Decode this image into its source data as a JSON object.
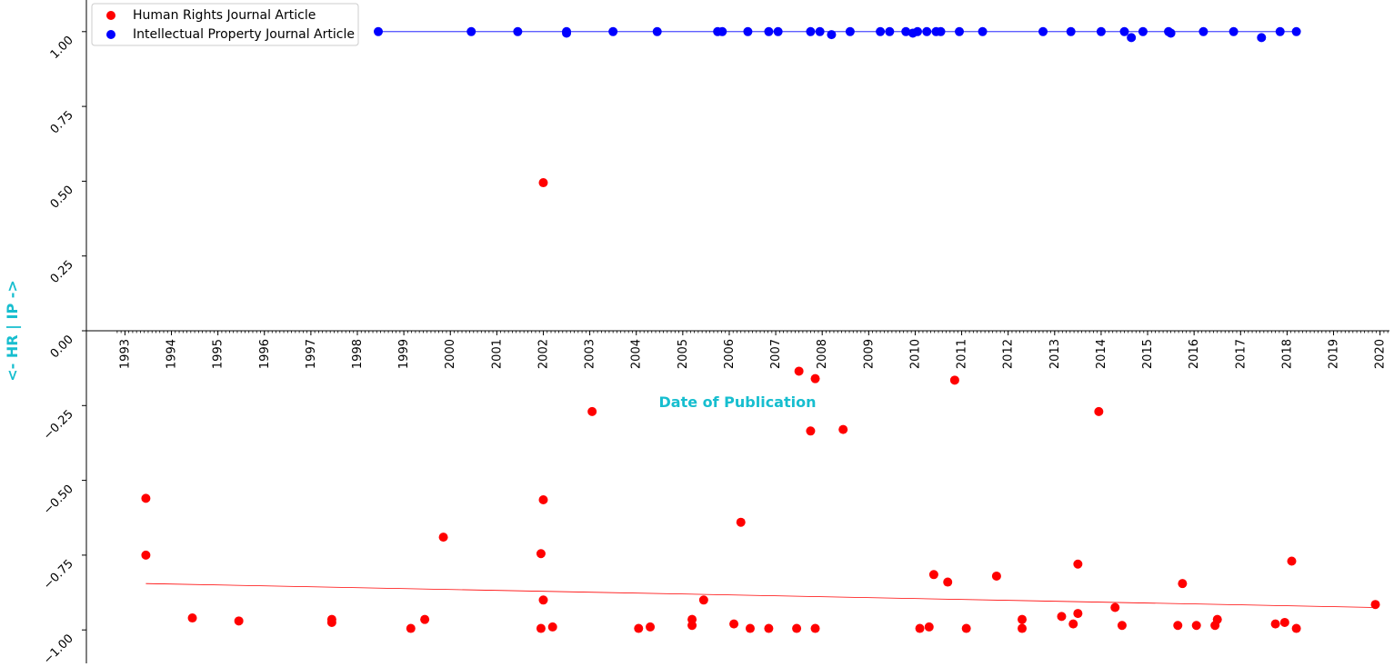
{
  "chart_data": {
    "type": "scatter",
    "xlabel": "Date of Publication",
    "ylabel": "<- HR | IP ->",
    "xlim": [
      1992.8,
      2020.2
    ],
    "ylim": [
      -1.05,
      1.04
    ],
    "x_ticks": [
      "1993",
      "1994",
      "1995",
      "1996",
      "1997",
      "1998",
      "1999",
      "2000",
      "2001",
      "2002",
      "2003",
      "2004",
      "2005",
      "2006",
      "2007",
      "2008",
      "2009",
      "2010",
      "2011",
      "2012",
      "2013",
      "2014",
      "2015",
      "2016",
      "2017",
      "2018",
      "2019",
      "2020"
    ],
    "y_ticks": [
      "1.00",
      "0.75",
      "0.50",
      "0.25",
      "0.00",
      "−0.25",
      "−0.50",
      "−0.75",
      "−1.00"
    ],
    "y_tick_values": [
      1.0,
      0.75,
      0.5,
      0.25,
      0.0,
      -0.25,
      -0.5,
      -0.75,
      -1.0
    ],
    "legend_position": "top-left",
    "series": [
      {
        "name": "Human Rights Journal Article",
        "color": "#ff0000",
        "trend": [
          [
            1993.45,
            -0.845
          ],
          [
            2019.9,
            -0.925
          ]
        ],
        "points": [
          [
            1993.45,
            -0.56
          ],
          [
            1993.45,
            -0.75
          ],
          [
            1994.45,
            -0.96
          ],
          [
            1995.45,
            -0.97
          ],
          [
            1997.45,
            -0.965
          ],
          [
            1997.45,
            -0.975
          ],
          [
            1999.15,
            -0.995
          ],
          [
            1999.45,
            -0.965
          ],
          [
            1999.85,
            -0.69
          ],
          [
            2002.0,
            0.495
          ],
          [
            2002.0,
            -0.565
          ],
          [
            2001.95,
            -0.745
          ],
          [
            2002.0,
            -0.9
          ],
          [
            2001.95,
            -0.995
          ],
          [
            2002.2,
            -0.99
          ],
          [
            2003.05,
            -0.27
          ],
          [
            2004.05,
            -0.995
          ],
          [
            2004.3,
            -0.99
          ],
          [
            2005.2,
            -0.965
          ],
          [
            2005.2,
            -0.985
          ],
          [
            2005.45,
            -0.9
          ],
          [
            2006.1,
            -0.98
          ],
          [
            2006.25,
            -0.64
          ],
          [
            2006.45,
            -0.995
          ],
          [
            2006.85,
            -0.995
          ],
          [
            2007.45,
            -0.995
          ],
          [
            2007.5,
            -0.135
          ],
          [
            2007.75,
            -0.335
          ],
          [
            2007.85,
            -0.16
          ],
          [
            2007.85,
            -0.995
          ],
          [
            2008.45,
            -0.33
          ],
          [
            2010.1,
            -0.995
          ],
          [
            2010.3,
            -0.99
          ],
          [
            2010.4,
            -0.815
          ],
          [
            2010.7,
            -0.84
          ],
          [
            2010.85,
            -0.165
          ],
          [
            2011.1,
            -0.995
          ],
          [
            2011.75,
            -0.82
          ],
          [
            2012.3,
            -0.965
          ],
          [
            2012.3,
            -0.995
          ],
          [
            2013.15,
            -0.955
          ],
          [
            2013.4,
            -0.98
          ],
          [
            2013.5,
            -0.78
          ],
          [
            2013.5,
            -0.945
          ],
          [
            2013.95,
            -0.27
          ],
          [
            2014.3,
            -0.925
          ],
          [
            2014.45,
            -0.985
          ],
          [
            2015.65,
            -0.985
          ],
          [
            2015.75,
            -0.845
          ],
          [
            2016.05,
            -0.985
          ],
          [
            2016.45,
            -0.985
          ],
          [
            2016.5,
            -0.965
          ],
          [
            2017.75,
            -0.98
          ],
          [
            2017.95,
            -0.975
          ],
          [
            2018.1,
            -0.77
          ],
          [
            2018.2,
            -0.995
          ],
          [
            2019.9,
            -0.915
          ]
        ]
      },
      {
        "name": "Intellectual Property Journal Article",
        "color": "#0000ff",
        "trend": [
          [
            1998.45,
            1.0
          ],
          [
            2018.2,
            1.0
          ]
        ],
        "points": [
          [
            1998.45,
            1.0
          ],
          [
            2000.45,
            1.0
          ],
          [
            2001.45,
            1.0
          ],
          [
            2002.5,
            0.995
          ],
          [
            2002.5,
            1.0
          ],
          [
            2003.5,
            1.0
          ],
          [
            2004.45,
            1.0
          ],
          [
            2005.75,
            1.0
          ],
          [
            2005.85,
            1.0
          ],
          [
            2006.4,
            1.0
          ],
          [
            2006.85,
            1.0
          ],
          [
            2007.05,
            1.0
          ],
          [
            2007.75,
            1.0
          ],
          [
            2007.95,
            1.0
          ],
          [
            2008.2,
            0.99
          ],
          [
            2008.6,
            1.0
          ],
          [
            2009.25,
            1.0
          ],
          [
            2009.45,
            1.0
          ],
          [
            2009.8,
            1.0
          ],
          [
            2009.95,
            0.995
          ],
          [
            2010.05,
            1.0
          ],
          [
            2010.25,
            1.0
          ],
          [
            2010.45,
            1.0
          ],
          [
            2010.55,
            1.0
          ],
          [
            2010.95,
            1.0
          ],
          [
            2011.45,
            1.0
          ],
          [
            2012.75,
            1.0
          ],
          [
            2013.35,
            1.0
          ],
          [
            2014.0,
            1.0
          ],
          [
            2014.5,
            1.0
          ],
          [
            2014.65,
            0.98
          ],
          [
            2014.9,
            1.0
          ],
          [
            2015.45,
            1.0
          ],
          [
            2015.5,
            0.995
          ],
          [
            2016.2,
            1.0
          ],
          [
            2016.85,
            1.0
          ],
          [
            2017.45,
            0.98
          ],
          [
            2017.85,
            1.0
          ],
          [
            2018.2,
            1.0
          ]
        ]
      }
    ]
  }
}
